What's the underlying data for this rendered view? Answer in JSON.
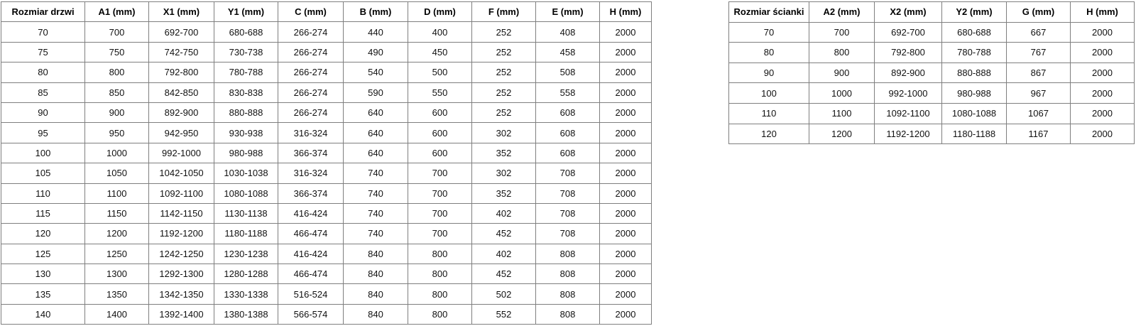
{
  "colors": {
    "background": "#ffffff",
    "table_border": "#7f7f7f",
    "header_text": "#000000",
    "cell_text": "#111111"
  },
  "tables": [
    {
      "id": "door-sizes",
      "headers": [
        "Rozmiar drzwi",
        "A1 (mm)",
        "X1 (mm)",
        "Y1 (mm)",
        "C (mm)",
        "B (mm)",
        "D (mm)",
        "F (mm)",
        "E (mm)",
        "H (mm)"
      ],
      "rows": [
        [
          "70",
          "700",
          "692-700",
          "680-688",
          "266-274",
          "440",
          "400",
          "252",
          "408",
          "2000"
        ],
        [
          "75",
          "750",
          "742-750",
          "730-738",
          "266-274",
          "490",
          "450",
          "252",
          "458",
          "2000"
        ],
        [
          "80",
          "800",
          "792-800",
          "780-788",
          "266-274",
          "540",
          "500",
          "252",
          "508",
          "2000"
        ],
        [
          "85",
          "850",
          "842-850",
          "830-838",
          "266-274",
          "590",
          "550",
          "252",
          "558",
          "2000"
        ],
        [
          "90",
          "900",
          "892-900",
          "880-888",
          "266-274",
          "640",
          "600",
          "252",
          "608",
          "2000"
        ],
        [
          "95",
          "950",
          "942-950",
          "930-938",
          "316-324",
          "640",
          "600",
          "302",
          "608",
          "2000"
        ],
        [
          "100",
          "1000",
          "992-1000",
          "980-988",
          "366-374",
          "640",
          "600",
          "352",
          "608",
          "2000"
        ],
        [
          "105",
          "1050",
          "1042-1050",
          "1030-1038",
          "316-324",
          "740",
          "700",
          "302",
          "708",
          "2000"
        ],
        [
          "110",
          "1100",
          "1092-1100",
          "1080-1088",
          "366-374",
          "740",
          "700",
          "352",
          "708",
          "2000"
        ],
        [
          "115",
          "1150",
          "1142-1150",
          "1130-1138",
          "416-424",
          "740",
          "700",
          "402",
          "708",
          "2000"
        ],
        [
          "120",
          "1200",
          "1192-1200",
          "1180-1188",
          "466-474",
          "740",
          "700",
          "452",
          "708",
          "2000"
        ],
        [
          "125",
          "1250",
          "1242-1250",
          "1230-1238",
          "416-424",
          "840",
          "800",
          "402",
          "808",
          "2000"
        ],
        [
          "130",
          "1300",
          "1292-1300",
          "1280-1288",
          "466-474",
          "840",
          "800",
          "452",
          "808",
          "2000"
        ],
        [
          "135",
          "1350",
          "1342-1350",
          "1330-1338",
          "516-524",
          "840",
          "800",
          "502",
          "808",
          "2000"
        ],
        [
          "140",
          "1400",
          "1392-1400",
          "1380-1388",
          "566-574",
          "840",
          "800",
          "552",
          "808",
          "2000"
        ]
      ]
    },
    {
      "id": "wall-sizes",
      "headers": [
        "Rozmiar ścianki",
        "A2 (mm)",
        "X2 (mm)",
        "Y2 (mm)",
        "G (mm)",
        "H (mm)"
      ],
      "rows": [
        [
          "70",
          "700",
          "692-700",
          "680-688",
          "667",
          "2000"
        ],
        [
          "80",
          "800",
          "792-800",
          "780-788",
          "767",
          "2000"
        ],
        [
          "90",
          "900",
          "892-900",
          "880-888",
          "867",
          "2000"
        ],
        [
          "100",
          "1000",
          "992-1000",
          "980-988",
          "967",
          "2000"
        ],
        [
          "110",
          "1100",
          "1092-1100",
          "1080-1088",
          "1067",
          "2000"
        ],
        [
          "120",
          "1200",
          "1192-1200",
          "1180-1188",
          "1167",
          "2000"
        ]
      ]
    }
  ]
}
